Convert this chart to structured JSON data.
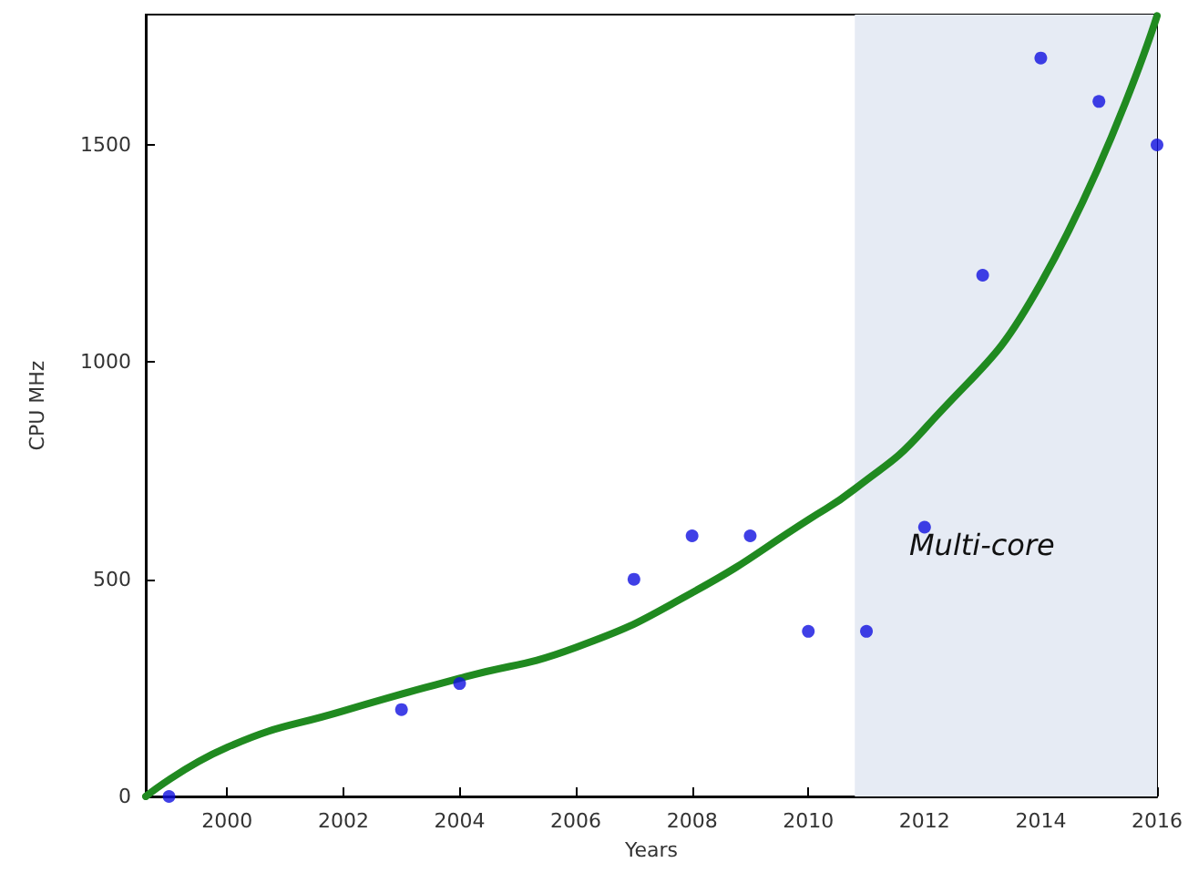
{
  "chart_data": {
    "type": "scatter",
    "xlabel": "Years",
    "ylabel": "CPU MHz",
    "x": [
      1999,
      2003,
      2004,
      2007,
      2008,
      2009,
      2010,
      2011,
      2012,
      2013,
      2014,
      2015,
      2016
    ],
    "series": [
      {
        "color": "#1010e0",
        "values": [
          0,
          200,
          260,
          500,
          600,
          600,
          380,
          380,
          620,
          1200,
          1700,
          1600,
          1500
        ]
      },
      {
        "type": "line",
        "marker": "none",
        "color": "#208a20",
        "x": [
          1998.6,
          2000,
          2002,
          2004,
          2006,
          2008,
          2010,
          2010.8,
          2012,
          2014,
          2016
        ],
        "values": [
          0,
          113,
          197,
          272,
          343,
          469,
          637,
          708,
          846,
          1181,
          1797
        ]
      }
    ],
    "bands": [
      {
        "axis": "x",
        "from": 2010.8,
        "to": 2016,
        "label": "Multi-core",
        "color": "#e6ebf4"
      }
    ],
    "xlim": [
      1998.6,
      2016
    ],
    "ylim": [
      0,
      1800
    ],
    "xticks": [
      2000,
      2002,
      2004,
      2006,
      2008,
      2010,
      2012,
      2014,
      2016
    ],
    "yticks": [
      0,
      500,
      1000,
      1500
    ],
    "grid": false,
    "marker": "circle",
    "line_style": "solid"
  }
}
